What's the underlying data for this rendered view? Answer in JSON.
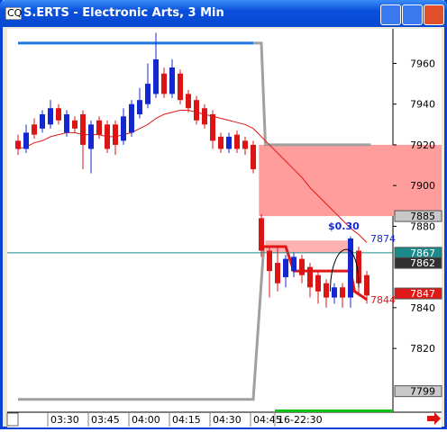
{
  "window": {
    "title": "S.ERTS - Electronic Arts, 3 Min"
  },
  "chart_data": {
    "type": "candlestick",
    "categories": [
      null,
      null,
      null,
      "03:30",
      null,
      null,
      null,
      null,
      "03:45",
      null,
      null,
      null,
      null,
      "04:00",
      null,
      null,
      null,
      null,
      "04:15",
      null,
      null,
      null,
      null,
      "04:30",
      null,
      null,
      null,
      null,
      "04:45",
      null,
      null,
      "16-22:30",
      null,
      null,
      null,
      null,
      null,
      null,
      null,
      null,
      null,
      null,
      null,
      null
    ],
    "open": [
      7922,
      7918,
      7930,
      7928,
      7930,
      7938,
      7926,
      7932,
      7935,
      7918,
      7932,
      7930,
      7930,
      7922,
      7926,
      7935,
      7940,
      7945,
      7955,
      7945,
      7955,
      7945,
      7942,
      7938,
      7935,
      7924,
      7918,
      7925,
      7922,
      7920,
      7884,
      7868,
      7862,
      7855,
      7858,
      7864,
      7860,
      7856,
      7852,
      7845,
      7850,
      7845,
      7868,
      7856
    ],
    "high": [
      7925,
      7930,
      7933,
      7937,
      7942,
      7940,
      7937,
      7934,
      7937,
      7932,
      7934,
      7932,
      7932,
      7938,
      7942,
      7948,
      7960,
      7975,
      7958,
      7962,
      7957,
      7947,
      7944,
      7940,
      7937,
      7926,
      7926,
      7927,
      7924,
      7922,
      7886,
      7870,
      7870,
      7866,
      7867,
      7866,
      7862,
      7858,
      7854,
      7852,
      7852,
      7875,
      7870,
      7858
    ],
    "low": [
      7915,
      7916,
      7923,
      7926,
      7928,
      7930,
      7924,
      7926,
      7908,
      7906,
      7923,
      7916,
      7915,
      7920,
      7924,
      7933,
      7938,
      7943,
      7943,
      7943,
      7940,
      7936,
      7930,
      7928,
      7918,
      7916,
      7916,
      7916,
      7915,
      7906,
      7865,
      7845,
      7848,
      7850,
      7855,
      7852,
      7845,
      7842,
      7840,
      7842,
      7840,
      7840,
      7846,
      7842
    ],
    "close": [
      7918,
      7926,
      7925,
      7935,
      7938,
      7932,
      7935,
      7928,
      7920,
      7930,
      7925,
      7918,
      7920,
      7934,
      7940,
      7942,
      7950,
      7962,
      7945,
      7958,
      7942,
      7938,
      7932,
      7930,
      7922,
      7918,
      7924,
      7918,
      7918,
      7908,
      7868,
      7858,
      7852,
      7864,
      7865,
      7856,
      7850,
      7848,
      7845,
      7850,
      7845,
      7874,
      7852,
      7846
    ],
    "up_color": "#1428d2",
    "down_color": "#dc1414",
    "average": {
      "color": "#e01818",
      "values": [
        7918,
        7919,
        7921,
        7922,
        7924,
        7925,
        7926,
        7926,
        7925,
        7925,
        7925,
        7924,
        7924,
        7925,
        7926,
        7928,
        7930,
        7933,
        7935,
        7936,
        7937,
        7937,
        7936,
        7935,
        7934,
        7933,
        7932,
        7931,
        7930,
        7928,
        7924,
        7920,
        7916,
        7912,
        7908,
        7904,
        7899,
        7895,
        7891,
        7887,
        7883,
        7879,
        7876,
        7872
      ]
    },
    "ylim": [
      7790,
      7977
    ],
    "yticks": [
      7960,
      7940,
      7920,
      7900,
      7880,
      7840,
      7820
    ],
    "overlays": [
      {
        "color": "#1e78e0",
        "width": 3,
        "points": [
          [
            0,
            7970
          ],
          [
            29,
            7970
          ]
        ]
      },
      {
        "color": "#a0a0a0",
        "width": 3,
        "points": [
          [
            29,
            7970
          ],
          [
            30,
            7970
          ],
          [
            30.5,
            7920
          ],
          [
            43.5,
            7920
          ]
        ]
      },
      {
        "color": "#a0a0a0",
        "width": 3,
        "points": [
          [
            0,
            7795
          ],
          [
            29,
            7795
          ],
          [
            30.3,
            7870
          ]
        ]
      },
      {
        "color": "#e01818",
        "width": 3,
        "points": [
          [
            30.3,
            7870
          ],
          [
            33,
            7870
          ],
          [
            34,
            7858
          ],
          [
            41,
            7858
          ],
          [
            41.5,
            7848
          ],
          [
            43,
            7844
          ]
        ]
      }
    ],
    "zones": [
      {
        "from": 7920,
        "to": 7885,
        "start": 29.7,
        "color": "#ff9c9c"
      },
      {
        "from": 7873,
        "to": 7867,
        "start": 30.5,
        "end": 41,
        "color": "#ffb0b0"
      }
    ],
    "price_markers": [
      {
        "value": 7885,
        "bg": "#c8c8c8",
        "fg": "#000000"
      },
      {
        "value": 7867,
        "bg": "#1a8a8a",
        "fg": "#ffffff",
        "line": true
      },
      {
        "value": 7862,
        "bg": "#303030",
        "fg": "#ffffff"
      },
      {
        "value": 7847,
        "bg": "#e01818",
        "fg": "#ffffff"
      },
      {
        "value": 7799,
        "bg": "#c8c8c8",
        "fg": "#000000"
      }
    ],
    "value_notes": [
      {
        "value": 7874,
        "color": "#1428d2"
      },
      {
        "value": 7844,
        "color": "#e01818"
      }
    ],
    "note": {
      "text": "$0.30",
      "color": "#1428d2"
    }
  }
}
